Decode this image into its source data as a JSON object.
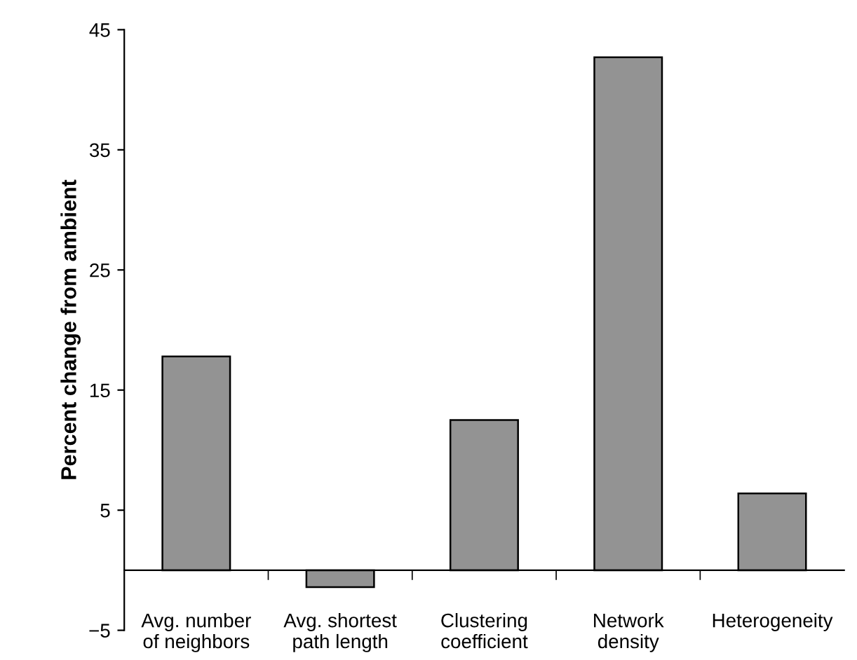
{
  "chart_data": {
    "type": "bar",
    "ylabel": "Percent change from ambient",
    "categories": [
      "Avg. number\nof neighbors",
      "Avg. shortest\npath length",
      "Clustering\ncoefficient",
      "Network\ndensity",
      "Heterogeneity"
    ],
    "values": [
      17.8,
      -1.4,
      12.5,
      42.7,
      6.4
    ],
    "color": "#939393",
    "ylim": [
      -5,
      45
    ],
    "yticks": [
      {
        "value": -5,
        "label": "−5"
      },
      5,
      15,
      25,
      35,
      45
    ],
    "grid": false
  }
}
